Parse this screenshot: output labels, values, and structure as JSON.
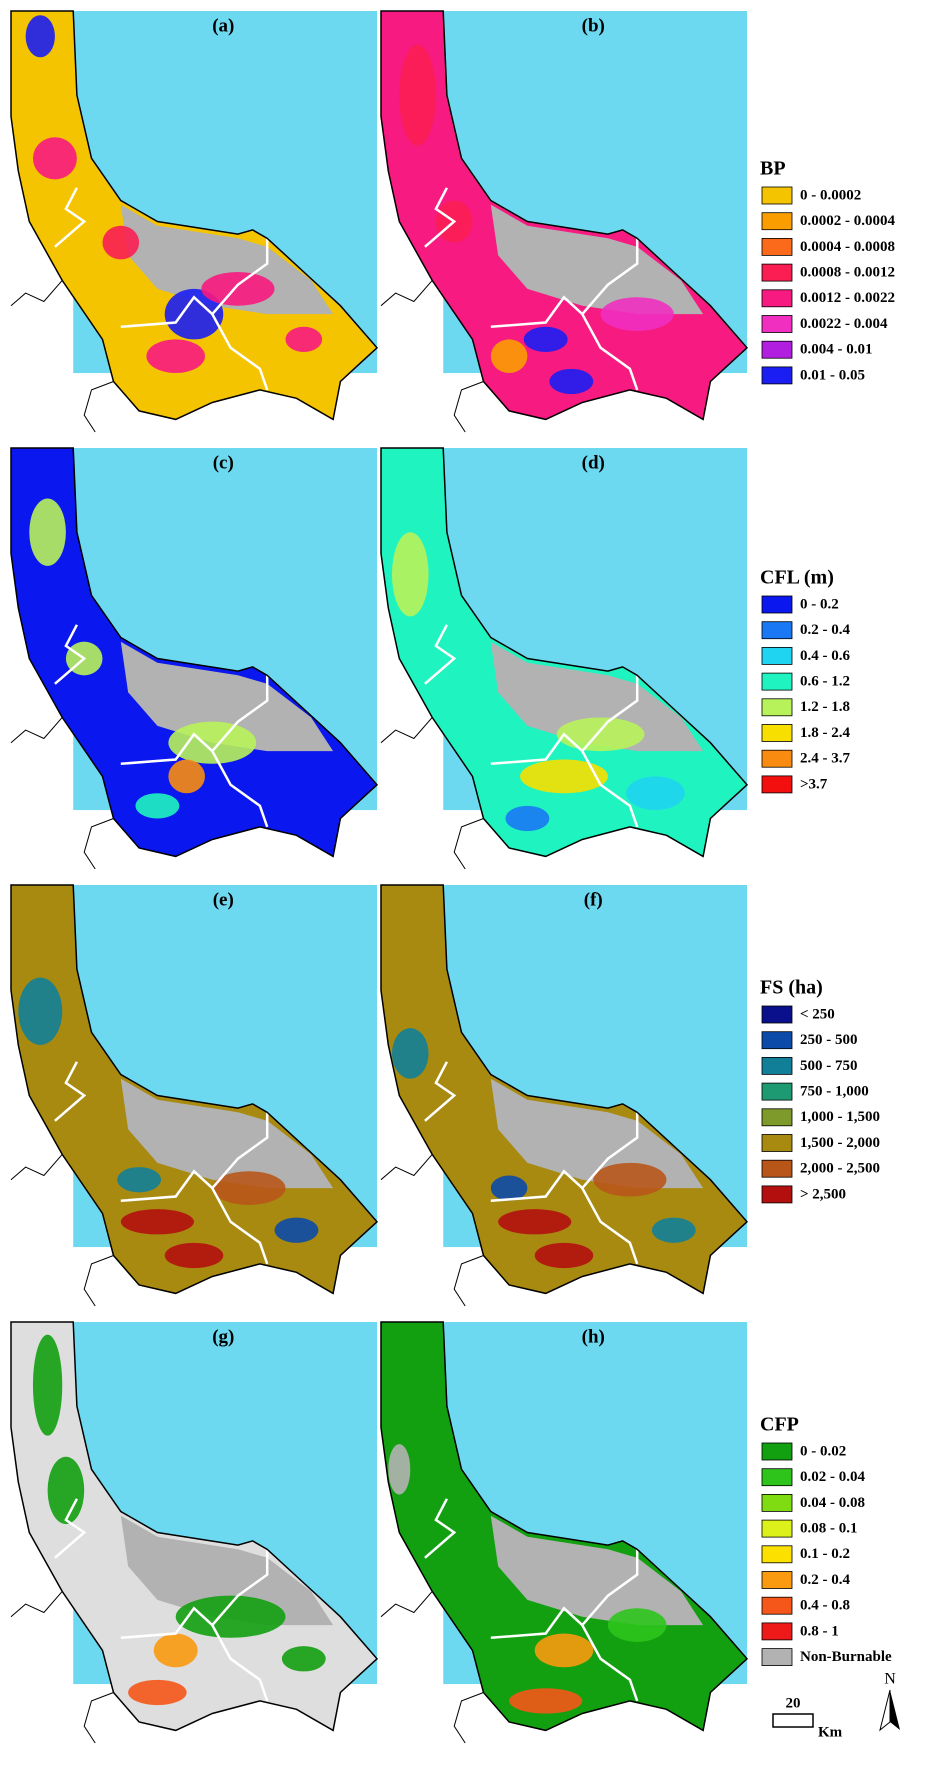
{
  "rows": [
    {
      "panels": [
        {
          "label": "(a)"
        },
        {
          "label": "(b)"
        }
      ],
      "legend": {
        "title": "BP",
        "items": [
          {
            "label": "0 - 0.0002",
            "color": "#f5c400"
          },
          {
            "label": "0.0002 - 0.0004",
            "color": "#f99d00"
          },
          {
            "label": "0.0004 - 0.0008",
            "color": "#fb6a1a"
          },
          {
            "label": "0.0008 - 0.0012",
            "color": "#fa1e52"
          },
          {
            "label": "0.0012 - 0.0022",
            "color": "#f71a80"
          },
          {
            "label": "0.0022 - 0.004",
            "color": "#f02fc0"
          },
          {
            "label": "0.004 - 0.01",
            "color": "#b21ee0"
          },
          {
            "label": "0.01 - 0.05",
            "color": "#1b1ef2"
          }
        ]
      }
    },
    {
      "panels": [
        {
          "label": "(c)"
        },
        {
          "label": "(d)"
        }
      ],
      "legend": {
        "title": "CFL (m)",
        "items": [
          {
            "label": "0 - 0.2",
            "color": "#0a17ee"
          },
          {
            "label": "0.2 - 0.4",
            "color": "#1a78f4"
          },
          {
            "label": "0.4 - 0.6",
            "color": "#1fd4f0"
          },
          {
            "label": "0.6 - 1.2",
            "color": "#1ff4c0"
          },
          {
            "label": "1.2 - 1.8",
            "color": "#b8f25a"
          },
          {
            "label": "1.8 - 2.4",
            "color": "#f7e000"
          },
          {
            "label": "2.4 - 3.7",
            "color": "#f98c10"
          },
          {
            "label": ">3.7",
            "color": "#f40f0f"
          }
        ]
      }
    },
    {
      "panels": [
        {
          "label": "(e)"
        },
        {
          "label": "(f)"
        }
      ],
      "legend": {
        "title": "FS (ha)",
        "items": [
          {
            "label": "< 250",
            "color": "#0a0f8c"
          },
          {
            "label": "250 - 500",
            "color": "#0b4aa8"
          },
          {
            "label": "500 - 750",
            "color": "#127f99"
          },
          {
            "label": "750 - 1,000",
            "color": "#1e9a73"
          },
          {
            "label": "1,000 - 1,500",
            "color": "#7d9a2a"
          },
          {
            "label": "1,500 - 2,000",
            "color": "#a88a10"
          },
          {
            "label": "2,000 - 2,500",
            "color": "#b8561a"
          },
          {
            "label": " > 2,500",
            "color": "#b30f0f"
          }
        ]
      }
    },
    {
      "panels": [
        {
          "label": "(g)"
        },
        {
          "label": "(h)"
        }
      ],
      "legend": {
        "title": "CFP",
        "items": [
          {
            "label": "0 - 0.02",
            "color": "#12a010"
          },
          {
            "label": "0.02 - 0.04",
            "color": "#2ec41c"
          },
          {
            "label": "0.04 - 0.08",
            "color": "#7fdc12"
          },
          {
            "label": "0.08 - 0.1",
            "color": "#dcf01a"
          },
          {
            "label": "0.1 - 0.2",
            "color": "#fbe000"
          },
          {
            "label": "0.2 - 0.4",
            "color": "#f99a10"
          },
          {
            "label": "0.4 - 0.8",
            "color": "#f5561a"
          },
          {
            "label": "0.8 - 1",
            "color": "#ee1a1a"
          },
          {
            "label": "Non-Burnable",
            "color": "#b2b2b2"
          }
        ]
      }
    }
  ],
  "scale_bar": {
    "distance": "20",
    "unit": "Km"
  },
  "north": "N"
}
